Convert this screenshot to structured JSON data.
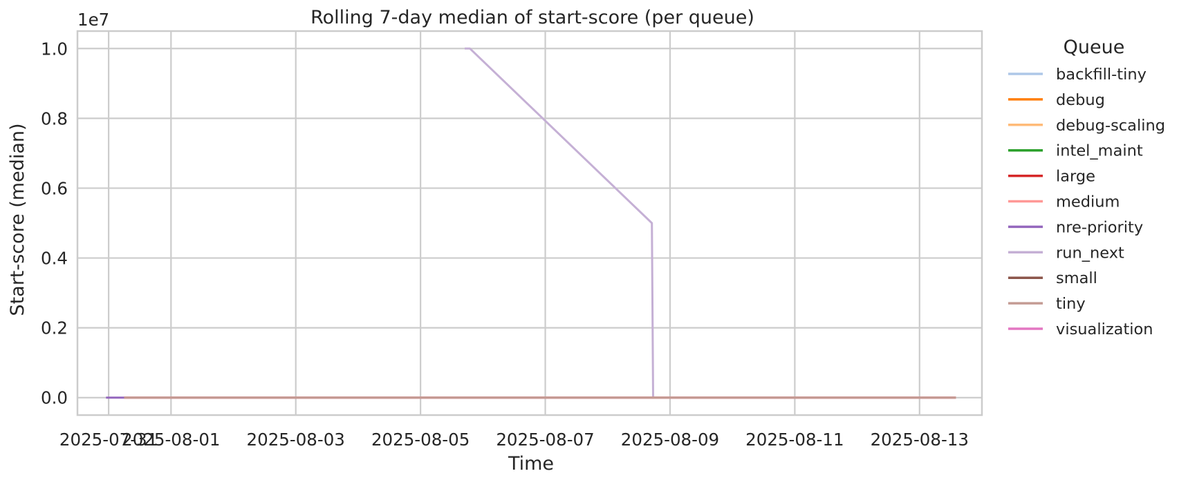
{
  "chart_data": {
    "type": "line",
    "title": "Rolling 7-day median of start-score (per queue)",
    "xlabel": "Time",
    "ylabel": "Start-score (median)",
    "y_offset_label": "1e7",
    "y_scale": 10000000,
    "xlim": [
      "2025-07-30T12:00",
      "2025-08-14T00:00"
    ],
    "ylim": [
      -500000,
      10500000
    ],
    "x_tick_dates": [
      "2025-07-31T00:00",
      "2025-08-01T00:00",
      "2025-08-03T00:00",
      "2025-08-05T00:00",
      "2025-08-07T00:00",
      "2025-08-09T00:00",
      "2025-08-11T00:00",
      "2025-08-13T00:00"
    ],
    "x_tick_labels": [
      "2025-07-31",
      "2025-08-01",
      "2025-08-03",
      "2025-08-05",
      "2025-08-07",
      "2025-08-09",
      "2025-08-11",
      "2025-08-13"
    ],
    "y_ticks": [
      0,
      2000000,
      4000000,
      6000000,
      8000000,
      10000000
    ],
    "y_tick_labels": [
      "0.0",
      "0.2",
      "0.4",
      "0.6",
      "0.8",
      "1.0"
    ],
    "grid": true,
    "legend_title": "Queue",
    "legend_position": "outside-right",
    "series": [
      {
        "name": "backfill-tiny",
        "color": "#aec7e8",
        "points": [
          [
            "2025-07-31T06:00",
            0
          ],
          [
            "2025-08-13T14:00",
            0
          ]
        ]
      },
      {
        "name": "debug",
        "color": "#ff7f0e",
        "points": [
          [
            "2025-07-31T06:00",
            0
          ],
          [
            "2025-08-13T14:00",
            0
          ]
        ]
      },
      {
        "name": "debug-scaling",
        "color": "#ffbb78",
        "points": [
          [
            "2025-07-31T06:00",
            0
          ],
          [
            "2025-08-13T14:00",
            0
          ]
        ]
      },
      {
        "name": "intel_maint",
        "color": "#2ca02c",
        "points": [
          [
            "2025-07-31T06:00",
            0
          ],
          [
            "2025-08-13T14:00",
            0
          ]
        ]
      },
      {
        "name": "large",
        "color": "#d62728",
        "points": [
          [
            "2025-07-31T06:00",
            0
          ],
          [
            "2025-08-13T14:00",
            0
          ]
        ]
      },
      {
        "name": "medium",
        "color": "#ff9896",
        "points": [
          [
            "2025-07-31T06:00",
            0
          ],
          [
            "2025-08-13T14:00",
            0
          ]
        ]
      },
      {
        "name": "nre-priority",
        "color": "#9467bd",
        "points": [
          [
            "2025-07-30T23:00",
            0
          ],
          [
            "2025-07-31T06:00",
            0
          ]
        ]
      },
      {
        "name": "run_next",
        "color": "#c5b0d5",
        "points": [
          [
            "2025-08-05T17:00",
            10000000
          ],
          [
            "2025-08-05T19:00",
            10000000
          ],
          [
            "2025-08-08T17:00",
            5000000
          ],
          [
            "2025-08-08T17:30",
            0
          ],
          [
            "2025-08-13T14:00",
            0
          ]
        ]
      },
      {
        "name": "small",
        "color": "#8c564b",
        "points": [
          [
            "2025-07-31T06:00",
            0
          ],
          [
            "2025-08-13T14:00",
            0
          ]
        ]
      },
      {
        "name": "tiny",
        "color": "#c49c94",
        "points": [
          [
            "2025-07-31T06:00",
            0
          ],
          [
            "2025-08-13T14:00",
            0
          ]
        ]
      },
      {
        "name": "visualization",
        "color": "#e377c2",
        "points": [
          [
            "2025-07-31T06:00",
            0
          ],
          [
            "2025-08-13T14:00",
            0
          ]
        ]
      }
    ]
  }
}
